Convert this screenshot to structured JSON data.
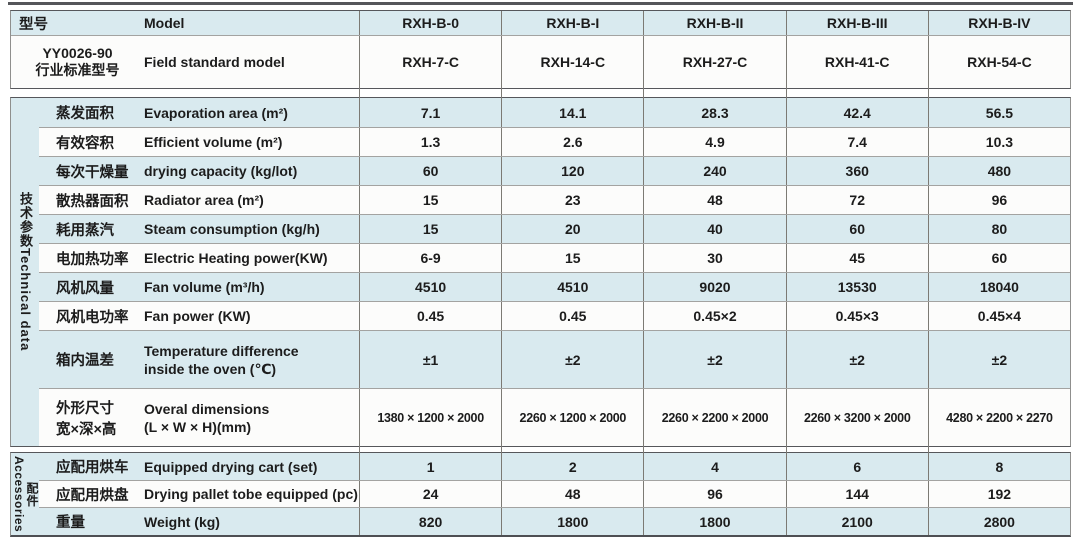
{
  "colors": {
    "row_blue": "#d9eaef",
    "row_white": "#fcfcfb",
    "border_dark": "#55565a",
    "border_mid": "#7c7a74",
    "border_light": "#a3a3a1",
    "text": "#1c1c1c"
  },
  "header": {
    "model_zh": "型号",
    "model_en": "Model",
    "models": [
      "RXH-B-0",
      "RXH-B-I",
      "RXH-B-II",
      "RXH-B-III",
      "RXH-B-IV"
    ],
    "standard_zh": "YY0026-90\n行业标准型号",
    "standard_en": "Field standard model",
    "standard_models": [
      "RXH-7-C",
      "RXH-14-C",
      "RXH-27-C",
      "RXH-41-C",
      "RXH-54-C"
    ]
  },
  "tech": {
    "group_label": "技术参数Technical data",
    "rows": [
      {
        "zh": "蒸发面积",
        "en": "Evaporation area (m²)",
        "values": [
          "7.1",
          "14.1",
          "28.3",
          "42.4",
          "56.5"
        ]
      },
      {
        "zh": "有效容积",
        "en": "Efficient volume (m²)",
        "values": [
          "1.3",
          "2.6",
          "4.9",
          "7.4",
          "10.3"
        ]
      },
      {
        "zh": "每次干燥量",
        "en": "drying capacity (kg/lot)",
        "values": [
          "60",
          "120",
          "240",
          "360",
          "480"
        ]
      },
      {
        "zh": "散热器面积",
        "en": "Radiator area (m²)",
        "values": [
          "15",
          "23",
          "48",
          "72",
          "96"
        ]
      },
      {
        "zh": "耗用蒸汽",
        "en": "Steam consumption (kg/h)",
        "values": [
          "15",
          "20",
          "40",
          "60",
          "80"
        ]
      },
      {
        "zh": "电加热功率",
        "en": "Electric Heating power(KW)",
        "values": [
          "6-9",
          "15",
          "30",
          "45",
          "60"
        ]
      },
      {
        "zh": "风机风量",
        "en": "Fan volume (m³/h)",
        "values": [
          "4510",
          "4510",
          "9020",
          "13530",
          "18040"
        ]
      },
      {
        "zh": "风机电功率",
        "en": "Fan power (KW)",
        "values": [
          "0.45",
          "0.45",
          "0.45×2",
          "0.45×3",
          "0.45×4"
        ]
      },
      {
        "zh": "箱内温差",
        "en": "Temperature difference\ninside the oven (℃)",
        "values": [
          "±1",
          "±2",
          "±2",
          "±2",
          "±2"
        ]
      },
      {
        "zh": "外形尺寸\n宽×深×高",
        "en": "Overal dimensions\n(L × W × H)(mm)",
        "values": [
          "1380 × 1200 × 2000",
          "2260 × 1200 × 2000",
          "2260 × 2200 × 2000",
          "2260 × 3200 × 2000",
          "4280 × 2200 × 2270"
        ]
      }
    ]
  },
  "accessories": {
    "group_label_en": "Accessories",
    "group_label_zh": "配件",
    "rows": [
      {
        "zh": "应配用烘车",
        "en": "Equipped drying cart (set)",
        "values": [
          "1",
          "2",
          "4",
          "6",
          "8"
        ]
      },
      {
        "zh": "应配用烘盘",
        "en": "Drying pallet tobe equipped (pc)",
        "values": [
          "24",
          "48",
          "96",
          "144",
          "192"
        ]
      },
      {
        "zh": "重量",
        "en": "Weight (kg)",
        "values": [
          "820",
          "1800",
          "1800",
          "2100",
          "2800"
        ]
      }
    ]
  }
}
